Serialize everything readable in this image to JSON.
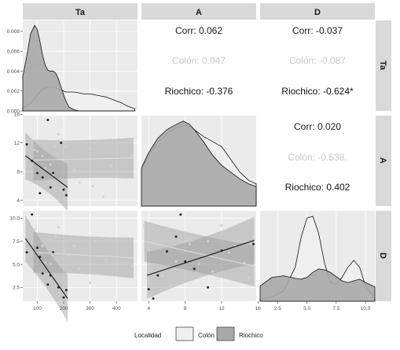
{
  "chart_data": {
    "type": "scatter",
    "variables": [
      "Ta",
      "A",
      "D"
    ],
    "groups": [
      {
        "name": "Colón",
        "fill": "#efefef",
        "point": "#d2d2d2",
        "text": "#c8c8c8"
      },
      {
        "name": "Riochico",
        "fill": "#a9a9a9",
        "point": "#262626",
        "text": "#111111"
      }
    ],
    "legend": {
      "title": "Localidad",
      "position": "bottom"
    },
    "axes": {
      "Ta": {
        "range": [
          45,
          480
        ],
        "ticks": [
          100,
          200,
          300,
          400
        ],
        "tick_labels": [
          "100",
          "200",
          "300",
          "400"
        ]
      },
      "A": {
        "range": [
          3.2,
          15.8
        ],
        "ticks": [
          4,
          8,
          12,
          16
        ],
        "tick_labels": [
          "4",
          "8",
          "12",
          "16"
        ]
      },
      "D": {
        "range": [
          1.0,
          10.8
        ],
        "ticks": [
          2.5,
          5.0,
          7.5,
          10.0
        ],
        "tick_labels": [
          "2.5",
          "5.0",
          "7.5",
          "10.0"
        ]
      },
      "Ta_density": {
        "range": [
          0,
          0.0091
        ],
        "ticks": [
          0,
          0.002,
          0.004,
          0.006,
          0.008
        ],
        "tick_labels": [
          "0.000",
          "0.002",
          "0.004",
          "0.006",
          "0.008"
        ]
      }
    },
    "correlations": [
      {
        "row": "Ta",
        "col": "A",
        "overall": "Corr: 0.062",
        "Colón": "Colón: 0.047",
        "Riochico": "Riochico: -0.376"
      },
      {
        "row": "Ta",
        "col": "D",
        "overall": "Corr: -0.037",
        "Colón": "Colón: -0.087",
        "Riochico": "Riochico: -0.624*"
      },
      {
        "row": "A",
        "col": "D",
        "overall": "Corr: 0.020",
        "Colón": "Colón: -0.538.",
        "Riochico": "Riochico: 0.402"
      }
    ],
    "densities": {
      "Ta": {
        "x": [
          45,
          60,
          75,
          90,
          100,
          110,
          120,
          130,
          140,
          150,
          160,
          170,
          180,
          190,
          200,
          210,
          220,
          240,
          260,
          280,
          300,
          320,
          340,
          360,
          380,
          400,
          420,
          440,
          460,
          470
        ],
        "Colón": [
          0.0003,
          0.0005,
          0.0008,
          0.0012,
          0.0016,
          0.0019,
          0.0022,
          0.0023,
          0.0024,
          0.0024,
          0.0024,
          0.0023,
          0.0022,
          0.0021,
          0.002,
          0.0019,
          0.0019,
          0.0019,
          0.0018,
          0.0017,
          0.0017,
          0.0016,
          0.0015,
          0.0014,
          0.0012,
          0.001,
          0.0008,
          0.0005,
          0.0003,
          0.0002
        ],
        "Riochico": [
          0.0035,
          0.0055,
          0.0078,
          0.0086,
          0.0082,
          0.007,
          0.0056,
          0.0046,
          0.0041,
          0.004,
          0.004,
          0.0038,
          0.0032,
          0.0024,
          0.0016,
          0.0009,
          0.0004,
          0.0001,
          0.0,
          0.0,
          0.0,
          0.0,
          0.0,
          0.0,
          0.0,
          0.0,
          0.0,
          0.0,
          0.0,
          0.0
        ]
      },
      "A": {
        "x": [
          3.2,
          4,
          5,
          6,
          7,
          7.8,
          8.5,
          9,
          10,
          11,
          12,
          13,
          14,
          15,
          15.8
        ],
        "Colón": [
          0.42,
          0.6,
          0.75,
          0.85,
          0.92,
          0.95,
          0.93,
          0.9,
          0.82,
          0.76,
          0.7,
          0.55,
          0.4,
          0.3,
          0.26
        ],
        "Riochico": [
          0.45,
          0.63,
          0.8,
          0.9,
          0.96,
          1.0,
          0.96,
          0.9,
          0.76,
          0.6,
          0.48,
          0.4,
          0.32,
          0.26,
          0.23
        ]
      },
      "D": {
        "x": [
          1.0,
          2.0,
          3.0,
          4.0,
          4.5,
          5.0,
          5.5,
          6.0,
          6.5,
          7.0,
          7.5,
          8.0,
          8.5,
          9.0,
          9.5,
          10.0,
          10.8
        ],
        "Colón": [
          0.02,
          0.05,
          0.12,
          0.4,
          0.75,
          0.98,
          1.0,
          0.8,
          0.45,
          0.22,
          0.2,
          0.28,
          0.4,
          0.48,
          0.4,
          0.18,
          0.03
        ],
        "Riochico": [
          0.18,
          0.28,
          0.3,
          0.27,
          0.26,
          0.28,
          0.34,
          0.38,
          0.37,
          0.34,
          0.29,
          0.24,
          0.22,
          0.24,
          0.26,
          0.22,
          0.17
        ]
      }
    },
    "points": {
      "Ta_A": {
        "Colón": [
          [
            90,
            11
          ],
          [
            100,
            10.8
          ],
          [
            120,
            10.2
          ],
          [
            130,
            8.5
          ],
          [
            150,
            9.0
          ],
          [
            160,
            7.5
          ],
          [
            170,
            11.5
          ],
          [
            180,
            13.2
          ],
          [
            210,
            11.5
          ],
          [
            240,
            8.2
          ],
          [
            260,
            6.5
          ],
          [
            300,
            11.2
          ],
          [
            310,
            6.0
          ],
          [
            350,
            4.5
          ],
          [
            380,
            8.8
          ],
          [
            460,
            10.3
          ]
        ],
        "Riochico": [
          [
            60,
            11.8
          ],
          [
            80,
            9.5
          ],
          [
            100,
            7.8
          ],
          [
            110,
            5.0
          ],
          [
            120,
            7.2
          ],
          [
            140,
            15.2
          ],
          [
            150,
            5.8
          ],
          [
            160,
            7.8
          ],
          [
            190,
            12.0
          ],
          [
            200,
            5.5
          ],
          [
            210,
            4.7
          ]
        ]
      },
      "Ta_D": {
        "Colón": [
          [
            90,
            8.8
          ],
          [
            100,
            6.0
          ],
          [
            120,
            7.0
          ],
          [
            130,
            5.2
          ],
          [
            150,
            5.0
          ],
          [
            170,
            8.0
          ],
          [
            180,
            9.0
          ],
          [
            200,
            6.5
          ],
          [
            220,
            6.0
          ],
          [
            240,
            7.0
          ],
          [
            260,
            4.5
          ],
          [
            300,
            3.0
          ],
          [
            320,
            7.5
          ],
          [
            360,
            5.5
          ],
          [
            400,
            5.0
          ],
          [
            460,
            4.8
          ]
        ],
        "Riochico": [
          [
            60,
            6.3
          ],
          [
            80,
            10.4
          ],
          [
            100,
            6.8
          ],
          [
            110,
            5.8
          ],
          [
            120,
            4.0
          ],
          [
            140,
            2.8
          ],
          [
            150,
            3.8
          ],
          [
            160,
            6.3
          ],
          [
            180,
            2.5
          ],
          [
            200,
            1.4
          ],
          [
            210,
            2.2
          ]
        ]
      },
      "A_D": {
        "Colón": [
          [
            3.5,
            9.2
          ],
          [
            4.5,
            8.8
          ],
          [
            5.5,
            3.8
          ],
          [
            6.5,
            2.6
          ],
          [
            7.0,
            5.3
          ],
          [
            8.0,
            6.5
          ],
          [
            8.5,
            7.2
          ],
          [
            9.5,
            5.0
          ],
          [
            10.5,
            7.5
          ],
          [
            11.0,
            4.2
          ],
          [
            12.0,
            9.2
          ],
          [
            12.8,
            6.3
          ],
          [
            13.5,
            7.0
          ],
          [
            14.5,
            5.2
          ],
          [
            15.0,
            3.5
          ],
          [
            15.5,
            8.0
          ]
        ],
        "Riochico": [
          [
            4.0,
            2.3
          ],
          [
            4.5,
            1.3
          ],
          [
            5.0,
            3.8
          ],
          [
            6.0,
            6.4
          ],
          [
            7.0,
            8.0
          ],
          [
            7.5,
            10.4
          ],
          [
            8.0,
            5.3
          ],
          [
            9.0,
            4.5
          ],
          [
            10.5,
            2.5
          ],
          [
            12.0,
            6.5
          ],
          [
            15.5,
            7.2
          ]
        ]
      }
    },
    "fits": {
      "Ta_A": {
        "Riochico": {
          "x": [
            55,
            215
          ],
          "y": [
            10.2,
            5.8
          ]
        },
        "Colón": {
          "x": [
            85,
            465
          ],
          "y": [
            9.6,
            9.9
          ]
        }
      },
      "Ta_D": {
        "Riochico": {
          "x": [
            55,
            215
          ],
          "y": [
            7.8,
            1.3
          ]
        },
        "Colón": {
          "x": [
            85,
            465
          ],
          "y": [
            6.3,
            5.7
          ]
        }
      },
      "A_D": {
        "Riochico": {
          "x": [
            3.8,
            15.6
          ],
          "y": [
            3.8,
            7.6
          ]
        },
        "Colón": {
          "x": [
            3.5,
            15.6
          ],
          "y": [
            7.5,
            4.8
          ]
        }
      }
    }
  }
}
